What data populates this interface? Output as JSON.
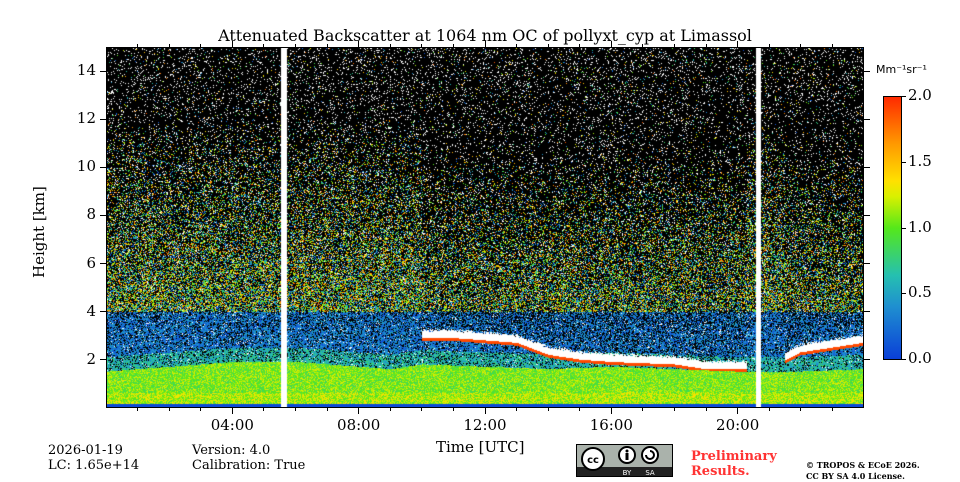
{
  "chart_data": {
    "type": "heatmap",
    "title": "Attenuated Backscatter at 1064 nm OC of pollyxt_cyp at Limassol",
    "xlabel": "Time [UTC]",
    "ylabel": "Height [km]",
    "xlim_hours": [
      0,
      24
    ],
    "ylim_km": [
      0,
      15
    ],
    "x_ticks": [
      "04:00",
      "08:00",
      "12:00",
      "16:00",
      "20:00"
    ],
    "x_tick_hours": [
      4,
      8,
      12,
      16,
      20
    ],
    "y_ticks": [
      "2",
      "4",
      "6",
      "8",
      "10",
      "12",
      "14"
    ],
    "y_tick_values": [
      2,
      4,
      6,
      8,
      10,
      12,
      14
    ],
    "colorbar": {
      "label": "Mm⁻¹sr⁻¹",
      "range": [
        0,
        2
      ],
      "ticks": [
        "0.0",
        "0.5",
        "1.0",
        "1.5",
        "2.0"
      ],
      "tick_values": [
        0,
        0.5,
        1,
        1.5,
        2
      ]
    },
    "data_gaps_hours": [
      [
        5.5,
        5.7
      ],
      [
        20.6,
        20.75
      ]
    ],
    "boundary_layer_top_km": {
      "hours": [
        0,
        4,
        6,
        9,
        10,
        12,
        14,
        16,
        18,
        20,
        22,
        24
      ],
      "values": [
        1.5,
        1.9,
        1.9,
        1.6,
        1.8,
        1.7,
        1.6,
        1.7,
        1.6,
        1.5,
        1.5,
        1.6
      ]
    },
    "cloud_base_km": {
      "hours": [
        10,
        11,
        12,
        13,
        14,
        15,
        16,
        18,
        19,
        20,
        21,
        22,
        23,
        24
      ],
      "values": [
        2.9,
        2.9,
        2.8,
        2.7,
        2.2,
        2.0,
        1.9,
        1.8,
        1.6,
        1.6,
        1.6,
        2.3,
        2.5,
        2.7
      ]
    }
  },
  "meta": {
    "date": "2026-01-19",
    "lc": "LC: 1.65e+14",
    "version": "Version: 4.0",
    "calibration": "Calibration: True"
  },
  "license": {
    "cc": "cc",
    "by": "BY",
    "sa": "SA",
    "prelim": "Preliminary Results.",
    "copyright": "© TROPOS & ECoE 2026.",
    "license": "CC BY SA 4.0 License."
  }
}
